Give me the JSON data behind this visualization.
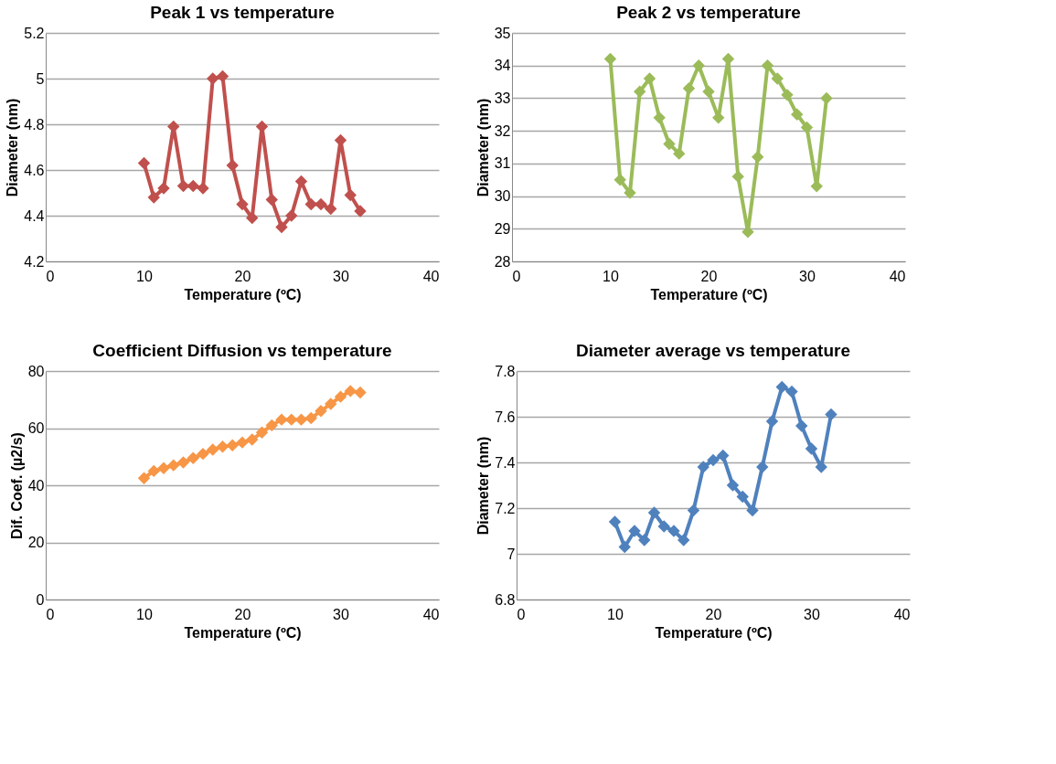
{
  "chart_data": [
    {
      "type": "line",
      "title": "Peak 1 vs temperature",
      "xlabel": "Temperature (ºC)",
      "ylabel": "Diameter (nm)",
      "xlim": [
        0,
        40
      ],
      "xticks": [
        0,
        10,
        20,
        30,
        40
      ],
      "ylim": [
        4.2,
        5.2
      ],
      "yticks": [
        4.2,
        4.4,
        4.6,
        4.8,
        5,
        5.2
      ],
      "grid": "y",
      "marker": "diamond",
      "x": [
        10,
        11,
        12,
        13,
        14,
        15,
        16,
        17,
        18,
        19,
        20,
        21,
        22,
        23,
        24,
        25,
        26,
        27,
        28,
        29,
        30,
        31,
        32
      ],
      "series": [
        {
          "color": "#c0504d",
          "values": [
            4.63,
            4.48,
            4.52,
            4.79,
            4.53,
            4.53,
            4.52,
            5.0,
            5.01,
            4.62,
            4.45,
            4.39,
            4.79,
            4.47,
            4.35,
            4.4,
            4.55,
            4.45,
            4.45,
            4.43,
            4.73,
            4.49,
            4.42
          ]
        }
      ]
    },
    {
      "type": "line",
      "title": "Peak 2 vs temperature",
      "xlabel": "Temperature (ºC)",
      "ylabel": "Diameter (nm)",
      "xlim": [
        0,
        40
      ],
      "xticks": [
        0,
        10,
        20,
        30,
        40
      ],
      "ylim": [
        28,
        35
      ],
      "yticks": [
        28,
        29,
        30,
        31,
        32,
        33,
        34,
        35
      ],
      "grid": "y",
      "marker": "diamond",
      "x": [
        10,
        11,
        12,
        13,
        14,
        15,
        16,
        17,
        18,
        19,
        20,
        21,
        22,
        23,
        24,
        25,
        26,
        27,
        28,
        29,
        30,
        31,
        32
      ],
      "series": [
        {
          "color": "#9bbb59",
          "values": [
            34.2,
            30.5,
            30.1,
            33.2,
            33.6,
            32.4,
            31.6,
            31.3,
            33.3,
            34.0,
            33.2,
            32.4,
            34.2,
            30.6,
            28.9,
            31.2,
            34.0,
            33.6,
            33.1,
            32.5,
            32.1,
            30.3,
            33.0
          ]
        }
      ]
    },
    {
      "type": "line",
      "title": "Coefficient Diffusion vs temperature",
      "xlabel": "Temperature (ºC)",
      "ylabel": "Dif. Coef. (µ2/s)",
      "xlim": [
        0,
        40
      ],
      "xticks": [
        0,
        10,
        20,
        30,
        40
      ],
      "ylim": [
        0,
        80
      ],
      "yticks": [
        0,
        20,
        40,
        60,
        80
      ],
      "grid": "y",
      "marker": "diamond",
      "x": [
        10,
        11,
        12,
        13,
        14,
        15,
        16,
        17,
        18,
        19,
        20,
        21,
        22,
        23,
        24,
        25,
        26,
        27,
        28,
        29,
        30,
        31,
        32
      ],
      "series": [
        {
          "color": "#f79646",
          "values": [
            42.5,
            45,
            46,
            47,
            48,
            49.5,
            51,
            52.5,
            53.5,
            54,
            55,
            56,
            58.5,
            61,
            63,
            63,
            63,
            63.5,
            66,
            68.5,
            71,
            73,
            72.5
          ]
        }
      ]
    },
    {
      "type": "line",
      "title": "Diameter average vs temperature",
      "xlabel": "Temperature (ºC)",
      "ylabel": "Diameter (nm)",
      "xlim": [
        0,
        40
      ],
      "xticks": [
        0,
        10,
        20,
        30,
        40
      ],
      "ylim": [
        6.8,
        7.8
      ],
      "yticks": [
        6.8,
        7,
        7.2,
        7.4,
        7.6,
        7.8
      ],
      "grid": "y",
      "marker": "diamond",
      "x": [
        10,
        11,
        12,
        13,
        14,
        15,
        16,
        17,
        18,
        19,
        20,
        21,
        22,
        23,
        24,
        25,
        26,
        27,
        28,
        29,
        30,
        31,
        32
      ],
      "series": [
        {
          "color": "#4f81bd",
          "values": [
            7.14,
            7.03,
            7.1,
            7.06,
            7.18,
            7.12,
            7.1,
            7.06,
            7.19,
            7.38,
            7.41,
            7.43,
            7.3,
            7.25,
            7.19,
            7.38,
            7.58,
            7.73,
            7.71,
            7.56,
            7.46,
            7.38,
            7.61
          ]
        }
      ]
    }
  ]
}
